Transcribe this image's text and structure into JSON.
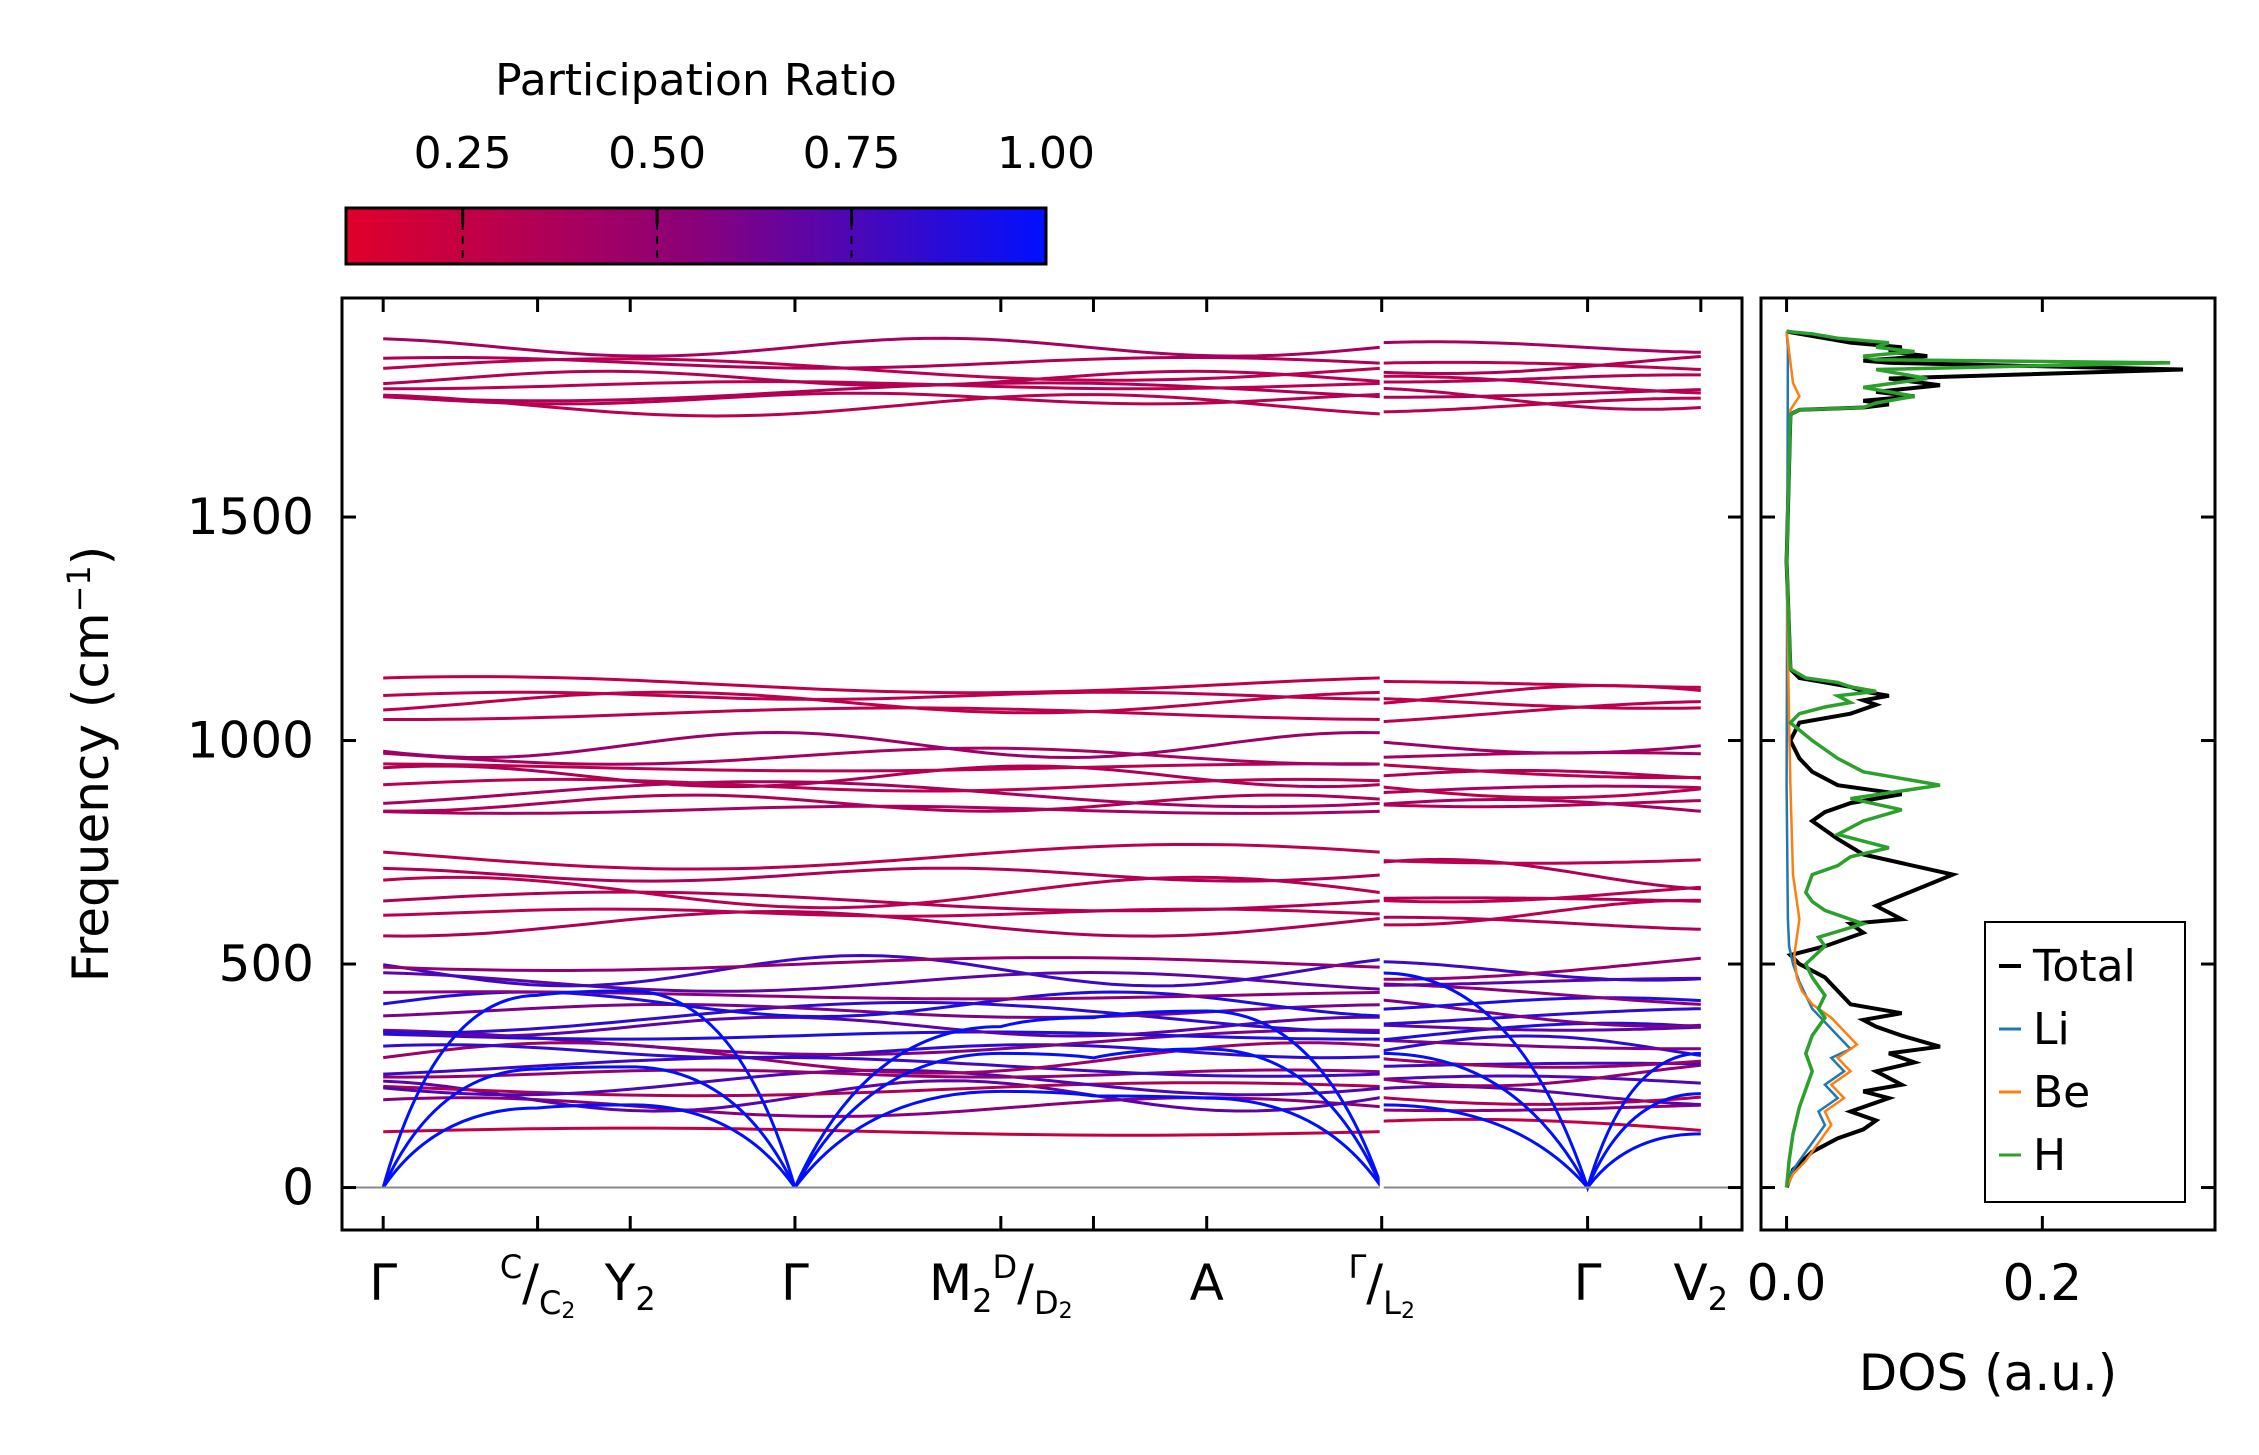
{
  "colors": {
    "low": "#e0002a",
    "mid": "#8a007a",
    "high": "#0010ff",
    "total": "#000000",
    "li": "#1f77b4",
    "be": "#ff7f0e",
    "h": "#2ca02c",
    "zero_line": "#888888"
  },
  "colorbar": {
    "title": "Participation Ratio",
    "range": [
      0.1,
      1.0
    ],
    "ticks": [
      0.25,
      0.5,
      0.75,
      1.0
    ],
    "tick_labels": [
      "0.25",
      "0.50",
      "0.75",
      "1.00"
    ]
  },
  "chart_data": [
    {
      "type": "line",
      "name": "phonon-dispersion",
      "ylabel_main": "Frequency (cm",
      "ylabel_sup": "−1",
      "ylabel_end": ")",
      "ylim": [
        -95,
        1990
      ],
      "yticks": [
        0,
        500,
        1000,
        1500
      ],
      "ytick_labels": [
        "0",
        "500",
        "1000",
        "1500"
      ],
      "segments": [
        {
          "name": "Γ–C|C2–Y2–Γ–M2–D|D2–A–Γ",
          "x_range": [
            0,
            4.85
          ]
        },
        {
          "name": "L2–Γ–V2",
          "x_range": [
            4.85,
            6.4
          ]
        }
      ],
      "path_ticks": [
        0,
        0.75,
        1.2,
        2.0,
        3.0,
        3.45,
        4.0,
        4.85,
        5.85,
        6.4
      ],
      "path_labels": [
        {
          "x": 0,
          "main": "Γ"
        },
        {
          "x": 0.75,
          "sup": "C",
          "slash": "/",
          "sub_main": "C",
          "sub": "2"
        },
        {
          "x": 1.2,
          "main": "Y",
          "sub": "2"
        },
        {
          "x": 2.0,
          "main": "Γ"
        },
        {
          "x": 3.0,
          "main": "M",
          "sub": "2",
          "sup": "D",
          "slash": "/",
          "sub_main": "D",
          "sub2": "2"
        },
        {
          "x": 4.0,
          "main": "A"
        },
        {
          "x": 4.85,
          "sup": "Γ",
          "slash": "/",
          "sub_main": "L",
          "sub": "2"
        },
        {
          "x": 5.85,
          "main": "Γ"
        },
        {
          "x": 6.4,
          "main": "V",
          "sub": "2"
        }
      ],
      "acoustic_branches": [
        {
          "x": [
            0,
            0.75,
            1.2,
            2.0
          ],
          "y": [
            0,
            178,
            185,
            0
          ]
        },
        {
          "x": [
            0,
            0.75,
            1.2,
            2.0
          ],
          "y": [
            0,
            265,
            270,
            0
          ]
        },
        {
          "x": [
            0,
            0.75,
            1.2,
            2.0
          ],
          "y": [
            0,
            430,
            440,
            0
          ]
        },
        {
          "x": [
            2.0,
            3.0,
            3.45,
            4.0,
            4.85
          ],
          "y": [
            0,
            215,
            205,
            200,
            0
          ]
        },
        {
          "x": [
            2.0,
            3.0,
            3.45,
            4.0,
            4.85
          ],
          "y": [
            0,
            300,
            290,
            310,
            0
          ]
        },
        {
          "x": [
            2.0,
            3.0,
            3.45,
            4.0,
            4.85
          ],
          "y": [
            0,
            360,
            380,
            395,
            0
          ]
        },
        {
          "x": [
            4.85,
            5.85,
            6.4
          ],
          "y": [
            185,
            0,
            120
          ]
        },
        {
          "x": [
            4.85,
            5.85,
            6.4
          ],
          "y": [
            300,
            0,
            210
          ]
        },
        {
          "x": [
            4.85,
            5.85,
            6.4
          ],
          "y": [
            480,
            0,
            300
          ]
        }
      ],
      "optical_bands": [
        {
          "y": 125,
          "pr": 0.25
        },
        {
          "y": 180,
          "pr": 0.55
        },
        {
          "y": 205,
          "pr": 0.7
        },
        {
          "y": 220,
          "pr": 0.35
        },
        {
          "y": 235,
          "pr": 0.75
        },
        {
          "y": 255,
          "pr": 0.5
        },
        {
          "y": 270,
          "pr": 0.8
        },
        {
          "y": 290,
          "pr": 0.45
        },
        {
          "y": 305,
          "pr": 0.85
        },
        {
          "y": 325,
          "pr": 0.6
        },
        {
          "y": 340,
          "pr": 0.9
        },
        {
          "y": 360,
          "pr": 0.7
        },
        {
          "y": 380,
          "pr": 0.85
        },
        {
          "y": 395,
          "pr": 0.6
        },
        {
          "y": 410,
          "pr": 0.9
        },
        {
          "y": 430,
          "pr": 0.55
        },
        {
          "y": 460,
          "pr": 0.7
        },
        {
          "y": 485,
          "pr": 0.8
        },
        {
          "y": 500,
          "pr": 0.5
        },
        {
          "y": 590,
          "pr": 0.35
        },
        {
          "y": 615,
          "pr": 0.3
        },
        {
          "y": 640,
          "pr": 0.35
        },
        {
          "y": 660,
          "pr": 0.3
        },
        {
          "y": 700,
          "pr": 0.35
        },
        {
          "y": 740,
          "pr": 0.3
        },
        {
          "y": 845,
          "pr": 0.4
        },
        {
          "y": 860,
          "pr": 0.35
        },
        {
          "y": 880,
          "pr": 0.4
        },
        {
          "y": 900,
          "pr": 0.3
        },
        {
          "y": 920,
          "pr": 0.35
        },
        {
          "y": 940,
          "pr": 0.3
        },
        {
          "y": 965,
          "pr": 0.4
        },
        {
          "y": 990,
          "pr": 0.45
        },
        {
          "y": 1060,
          "pr": 0.3
        },
        {
          "y": 1085,
          "pr": 0.28
        },
        {
          "y": 1100,
          "pr": 0.3
        },
        {
          "y": 1125,
          "pr": 0.28
        },
        {
          "y": 1750,
          "pr": 0.3
        },
        {
          "y": 1765,
          "pr": 0.32
        },
        {
          "y": 1780,
          "pr": 0.35
        },
        {
          "y": 1795,
          "pr": 0.3
        },
        {
          "y": 1810,
          "pr": 0.33
        },
        {
          "y": 1830,
          "pr": 0.3
        },
        {
          "y": 1845,
          "pr": 0.35
        },
        {
          "y": 1880,
          "pr": 0.4
        }
      ]
    },
    {
      "type": "line",
      "name": "density-of-states",
      "xlabel": "DOS (a.u.)",
      "xlim": [
        -0.02,
        0.335
      ],
      "ylim": [
        -95,
        1990
      ],
      "xticks": [
        0.0,
        0.2
      ],
      "xtick_labels": [
        "0.0",
        "0.2"
      ],
      "legend_position": "lower-right",
      "series": [
        {
          "name": "Total",
          "color_key": "total",
          "x": [
            0,
            0.005,
            0.02,
            0.04,
            0.06,
            0.07,
            0.05,
            0.08,
            0.06,
            0.09,
            0.07,
            0.1,
            0.08,
            0.12,
            0.09,
            0.07,
            0.06,
            0.09,
            0.05,
            0.04,
            0.03,
            0.01,
            0.003,
            0.03,
            0.06,
            0.05,
            0.09,
            0.07,
            0.13,
            0.06,
            0.04,
            0.02,
            0.03,
            0.05,
            0.09,
            0.04,
            0.02,
            0.01,
            0.003,
            0.01,
            0.05,
            0.07,
            0.06,
            0.08,
            0.06,
            0.05,
            0.03,
            0.01,
            0.003,
            0,
            0.003,
            0.01,
            0.06,
            0.08,
            0.06,
            0.1,
            0.07,
            0.12,
            0.08,
            0.31,
            0.08,
            0.06,
            0.11,
            0.08,
            0.09,
            0.05,
            0.03,
            0.01,
            0
          ],
          "y": [
            0,
            40,
            80,
            110,
            130,
            150,
            170,
            200,
            215,
            230,
            260,
            280,
            300,
            315,
            340,
            360,
            375,
            390,
            410,
            440,
            470,
            500,
            520,
            540,
            570,
            590,
            600,
            630,
            700,
            745,
            780,
            820,
            840,
            860,
            880,
            900,
            930,
            960,
            1000,
            1040,
            1060,
            1080,
            1090,
            1100,
            1110,
            1120,
            1130,
            1140,
            1160,
            1400,
            1730,
            1740,
            1745,
            1752,
            1760,
            1770,
            1780,
            1795,
            1810,
            1830,
            1845,
            1850,
            1860,
            1870,
            1880,
            1890,
            1900,
            1910,
            1915
          ]
        },
        {
          "name": "Li",
          "color_key": "li",
          "x": [
            0,
            0.003,
            0.01,
            0.02,
            0.03,
            0.025,
            0.04,
            0.03,
            0.045,
            0.035,
            0.05,
            0.04,
            0.03,
            0.02,
            0.015,
            0.01,
            0.005,
            0.002,
            0.001,
            0,
            0.001,
            0
          ],
          "y": [
            0,
            30,
            60,
            100,
            140,
            170,
            200,
            230,
            260,
            290,
            310,
            340,
            370,
            400,
            430,
            460,
            500,
            540,
            600,
            900,
            1880,
            1915
          ]
        },
        {
          "name": "Be",
          "color_key": "be",
          "x": [
            0,
            0.005,
            0.015,
            0.025,
            0.035,
            0.03,
            0.045,
            0.035,
            0.05,
            0.04,
            0.055,
            0.045,
            0.035,
            0.02,
            0.012,
            0.008,
            0.006,
            0.01,
            0.005,
            0.003,
            0.002,
            0,
            0.003,
            0.01,
            0.005,
            0
          ],
          "y": [
            0,
            30,
            60,
            100,
            140,
            170,
            200,
            230,
            260,
            290,
            320,
            350,
            380,
            410,
            440,
            470,
            520,
            600,
            700,
            900,
            1040,
            1400,
            1740,
            1770,
            1800,
            1915
          ]
        },
        {
          "name": "H",
          "color_key": "h",
          "x": [
            0,
            0.002,
            0.005,
            0.01,
            0.015,
            0.02,
            0.015,
            0.02,
            0.03,
            0.025,
            0.03,
            0.02,
            0.015,
            0.03,
            0.025,
            0.06,
            0.03,
            0.02,
            0.015,
            0.02,
            0.04,
            0.05,
            0.08,
            0.04,
            0.06,
            0.09,
            0.05,
            0.12,
            0.06,
            0.04,
            0.02,
            0.003,
            0.01,
            0.03,
            0.05,
            0.04,
            0.07,
            0.05,
            0.04,
            0.015,
            0.003,
            0,
            0.003,
            0.01,
            0.06,
            0.07,
            0.1,
            0.06,
            0.11,
            0.07,
            0.3,
            0.07,
            0.06,
            0.1,
            0.07,
            0.08,
            0.04,
            0.02,
            0
          ],
          "y": [
            0,
            60,
            120,
            180,
            220,
            260,
            300,
            340,
            380,
            400,
            430,
            470,
            500,
            540,
            560,
            590,
            620,
            640,
            660,
            700,
            720,
            740,
            760,
            790,
            820,
            845,
            870,
            900,
            930,
            960,
            1000,
            1040,
            1060,
            1075,
            1085,
            1100,
            1110,
            1120,
            1130,
            1140,
            1160,
            1400,
            1730,
            1740,
            1745,
            1755,
            1770,
            1790,
            1810,
            1830,
            1845,
            1852,
            1860,
            1870,
            1880,
            1890,
            1900,
            1910,
            1915
          ]
        }
      ]
    }
  ]
}
